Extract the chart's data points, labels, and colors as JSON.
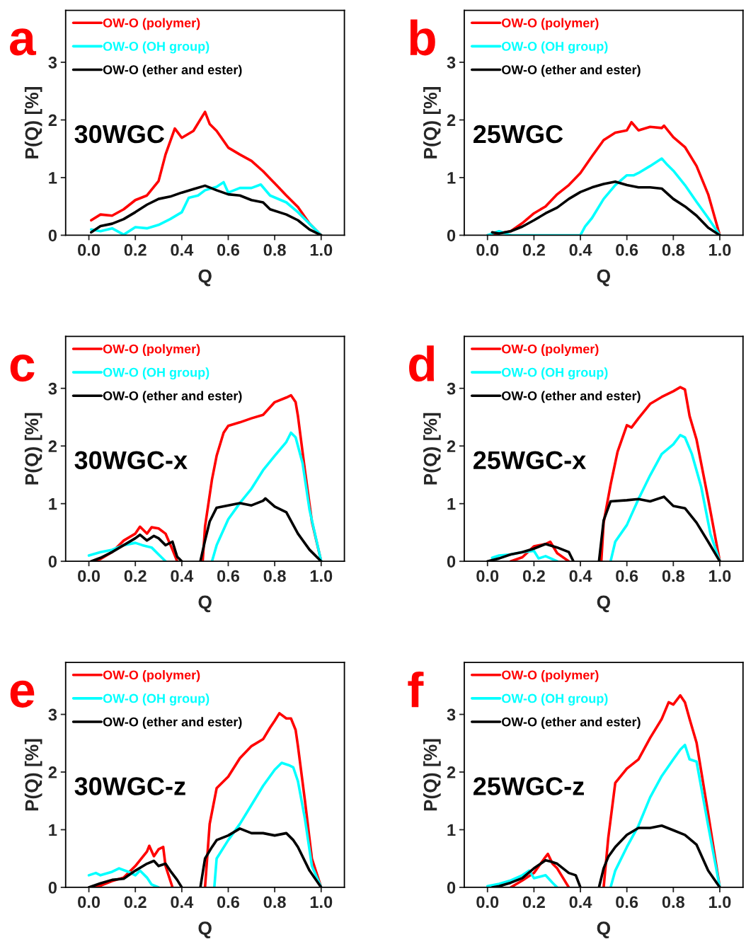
{
  "chart_data": [
    {
      "type": "line",
      "title": "a",
      "xlabel": "Q",
      "ylabel": "P(Q) [%]",
      "xlim": [
        -0.1,
        1.1
      ],
      "ylim": [
        0,
        3.9
      ],
      "xticks": [
        {
          "value": 0,
          "label": "0.0"
        },
        {
          "value": 0.2,
          "label": "0.2"
        },
        {
          "value": 0.4,
          "label": "0.4"
        },
        {
          "value": 0.6,
          "label": "0.6"
        },
        {
          "value": 0.8,
          "label": "0.8"
        },
        {
          "value": 1,
          "label": "1.0"
        }
      ],
      "yticks": [
        0,
        1,
        2,
        3
      ],
      "legend": "top left",
      "annotations": [
        "30WGC"
      ],
      "series": [
        {
          "name": "OW-O (polymer)",
          "color": "#ff0000",
          "x": [
            0.01,
            0.05,
            0.1,
            0.15,
            0.2,
            0.25,
            0.3,
            0.33,
            0.37,
            0.4,
            0.45,
            0.5,
            0.52,
            0.55,
            0.6,
            0.65,
            0.7,
            0.75,
            0.8,
            0.85,
            0.9,
            0.95,
            1.0
          ],
          "values": [
            0.26,
            0.36,
            0.34,
            0.45,
            0.61,
            0.69,
            0.94,
            1.4,
            1.85,
            1.69,
            1.81,
            2.14,
            1.93,
            1.81,
            1.52,
            1.4,
            1.29,
            1.11,
            0.9,
            0.69,
            0.49,
            0.2,
            0
          ]
        },
        {
          "name": "OW-O (OH group)",
          "color": "#00ffff",
          "x": [
            0.01,
            0.05,
            0.1,
            0.15,
            0.2,
            0.25,
            0.3,
            0.35,
            0.4,
            0.43,
            0.47,
            0.5,
            0.55,
            0.58,
            0.6,
            0.65,
            0.7,
            0.74,
            0.78,
            0.85,
            0.9,
            0.95,
            1.0
          ],
          "values": [
            0.1,
            0.07,
            0.12,
            0.01,
            0.14,
            0.12,
            0.18,
            0.28,
            0.4,
            0.65,
            0.69,
            0.78,
            0.84,
            0.92,
            0.74,
            0.82,
            0.82,
            0.88,
            0.69,
            0.57,
            0.4,
            0.2,
            0
          ]
        },
        {
          "name": "OW-O (ether and ester)",
          "color": "#000000",
          "x": [
            0.01,
            0.05,
            0.1,
            0.15,
            0.2,
            0.25,
            0.3,
            0.35,
            0.4,
            0.45,
            0.5,
            0.55,
            0.6,
            0.65,
            0.7,
            0.75,
            0.78,
            0.85,
            0.9,
            0.95,
            1.0
          ],
          "values": [
            0.05,
            0.16,
            0.2,
            0.28,
            0.4,
            0.53,
            0.63,
            0.67,
            0.74,
            0.8,
            0.86,
            0.78,
            0.71,
            0.69,
            0.61,
            0.57,
            0.45,
            0.36,
            0.26,
            0.1,
            0
          ]
        }
      ]
    },
    {
      "type": "line",
      "title": "b",
      "xlabel": "Q",
      "ylabel": "P(Q) [%]",
      "xlim": [
        -0.1,
        1.1
      ],
      "ylim": [
        0,
        3.9
      ],
      "xticks": [
        {
          "value": 0,
          "label": "0.0"
        },
        {
          "value": 0.2,
          "label": "0.2"
        },
        {
          "value": 0.4,
          "label": "0.4"
        },
        {
          "value": 0.6,
          "label": "0.6"
        },
        {
          "value": 0.8,
          "label": "0.8"
        },
        {
          "value": 1,
          "label": "1.0"
        }
      ],
      "yticks": [
        0,
        1,
        2,
        3
      ],
      "legend": "top left",
      "annotations": [
        "25WGC"
      ],
      "series": [
        {
          "name": "OW-O (polymer)",
          "color": "#ff0000",
          "x": [
            0.0,
            0.1,
            0.15,
            0.2,
            0.25,
            0.3,
            0.35,
            0.4,
            0.45,
            0.5,
            0.55,
            0.6,
            0.62,
            0.65,
            0.7,
            0.75,
            0.76,
            0.8,
            0.85,
            0.9,
            0.95,
            1.0
          ],
          "values": [
            0,
            0.07,
            0.21,
            0.38,
            0.5,
            0.71,
            0.87,
            1.08,
            1.37,
            1.65,
            1.78,
            1.82,
            1.96,
            1.82,
            1.88,
            1.86,
            1.9,
            1.7,
            1.53,
            1.2,
            0.71,
            0
          ]
        },
        {
          "name": "OW-O (OH group)",
          "color": "#00ffff",
          "x": [
            0.0,
            0.05,
            0.1,
            0.3,
            0.4,
            0.42,
            0.45,
            0.5,
            0.55,
            0.6,
            0.63,
            0.65,
            0.7,
            0.75,
            0.77,
            0.8,
            0.85,
            0.9,
            0.95,
            1.0
          ],
          "values": [
            0,
            0.07,
            0,
            0,
            0,
            0.15,
            0.3,
            0.63,
            0.87,
            1.04,
            1.04,
            1.08,
            1.2,
            1.33,
            1.24,
            1.12,
            0.87,
            0.58,
            0.3,
            0
          ]
        },
        {
          "name": "OW-O (ether and ester)",
          "color": "#000000",
          "x": [
            0.02,
            0.05,
            0.1,
            0.15,
            0.2,
            0.25,
            0.3,
            0.35,
            0.4,
            0.45,
            0.5,
            0.55,
            0.6,
            0.65,
            0.7,
            0.75,
            0.8,
            0.85,
            0.9,
            0.95,
            1.0
          ],
          "values": [
            0.05,
            0.03,
            0.07,
            0.15,
            0.26,
            0.38,
            0.48,
            0.63,
            0.75,
            0.83,
            0.89,
            0.93,
            0.87,
            0.83,
            0.83,
            0.81,
            0.63,
            0.5,
            0.34,
            0.13,
            0
          ]
        }
      ]
    },
    {
      "type": "line",
      "title": "c",
      "xlabel": "Q",
      "ylabel": "P(Q) [%]",
      "xlim": [
        -0.1,
        1.1
      ],
      "ylim": [
        0,
        3.9
      ],
      "xticks": [
        {
          "value": 0,
          "label": "0.0"
        },
        {
          "value": 0.2,
          "label": "0.2"
        },
        {
          "value": 0.4,
          "label": "0.4"
        },
        {
          "value": 0.6,
          "label": "0.6"
        },
        {
          "value": 0.8,
          "label": "0.8"
        },
        {
          "value": 1,
          "label": "1.0"
        }
      ],
      "yticks": [
        0,
        1,
        2,
        3
      ],
      "legend": "top left",
      "annotations": [
        "30WGC-x"
      ],
      "series": [
        {
          "name": "OW-O (polymer)",
          "color": "#ff0000",
          "x": [
            0.02,
            0.05,
            0.1,
            0.15,
            0.2,
            0.22,
            0.25,
            0.27,
            0.3,
            0.33,
            0.36,
            0.38,
            0.44,
            0.49,
            0.5,
            0.53,
            0.55,
            0.58,
            0.6,
            0.65,
            0.7,
            0.75,
            0.8,
            0.85,
            0.87,
            0.89,
            0.9,
            0.93,
            0.96,
            1.0
          ],
          "values": [
            0,
            0.04,
            0.16,
            0.36,
            0.48,
            0.6,
            0.48,
            0.59,
            0.57,
            0.48,
            0.2,
            0,
            null,
            0,
            0.6,
            1.42,
            1.83,
            2.23,
            2.35,
            2.41,
            2.48,
            2.54,
            2.76,
            2.84,
            2.88,
            2.76,
            2.52,
            1.58,
            0.69,
            0
          ]
        },
        {
          "name": "OW-O (OH group)",
          "color": "#00ffff",
          "x": [
            0.0,
            0.05,
            0.1,
            0.15,
            0.2,
            0.23,
            0.27,
            0.3,
            0.33,
            0.43,
            0.53,
            0.55,
            0.6,
            0.65,
            0.7,
            0.75,
            0.8,
            0.85,
            0.87,
            0.89,
            0.92,
            0.95,
            1.0
          ],
          "values": [
            0.1,
            0.16,
            0.2,
            0.28,
            0.32,
            0.28,
            0.24,
            0.12,
            0,
            null,
            0,
            0.28,
            0.73,
            1.01,
            1.26,
            1.58,
            1.83,
            2.07,
            2.23,
            2.15,
            1.7,
            0.89,
            0
          ]
        },
        {
          "name": "OW-O (ether and ester)",
          "color": "#000000",
          "x": [
            0.01,
            0.05,
            0.1,
            0.15,
            0.2,
            0.22,
            0.25,
            0.28,
            0.3,
            0.33,
            0.36,
            0.38,
            0.4,
            0.44,
            0.48,
            0.5,
            0.52,
            0.55,
            0.6,
            0.65,
            0.7,
            0.75,
            0.76,
            0.8,
            0.85,
            0.9,
            0.95,
            1.0
          ],
          "values": [
            0,
            0.06,
            0.16,
            0.28,
            0.4,
            0.46,
            0.36,
            0.44,
            0.4,
            0.28,
            0.34,
            0.08,
            0,
            null,
            0,
            0.36,
            0.69,
            0.93,
            0.97,
            1.01,
            0.97,
            1.05,
            1.09,
            0.95,
            0.85,
            0.48,
            0.2,
            0
          ]
        }
      ]
    },
    {
      "type": "line",
      "title": "d",
      "xlabel": "Q",
      "ylabel": "P(Q) [%]",
      "xlim": [
        -0.1,
        1.1
      ],
      "ylim": [
        0,
        3.9
      ],
      "xticks": [
        {
          "value": 0,
          "label": "0.0"
        },
        {
          "value": 0.2,
          "label": "0.2"
        },
        {
          "value": 0.4,
          "label": "0.4"
        },
        {
          "value": 0.6,
          "label": "0.6"
        },
        {
          "value": 0.8,
          "label": "0.8"
        },
        {
          "value": 1,
          "label": "1.0"
        }
      ],
      "yticks": [
        0,
        1,
        2,
        3
      ],
      "legend": "top left",
      "annotations": [
        "25WGC-x"
      ],
      "series": [
        {
          "name": "OW-O (polymer)",
          "color": "#ff0000",
          "x": [
            0.1,
            0.15,
            0.2,
            0.25,
            0.27,
            0.3,
            0.35,
            0.42,
            0.49,
            0.5,
            0.53,
            0.56,
            0.6,
            0.62,
            0.65,
            0.7,
            0.75,
            0.8,
            0.83,
            0.85,
            0.87,
            0.9,
            0.95,
            1.0
          ],
          "values": [
            0,
            0.07,
            0.26,
            0.3,
            0.34,
            0.14,
            0,
            null,
            0,
            0.67,
            1.33,
            1.9,
            2.36,
            2.32,
            2.48,
            2.73,
            2.85,
            2.95,
            3.02,
            2.98,
            2.52,
            2.11,
            1.08,
            0
          ]
        },
        {
          "name": "OW-O (OH group)",
          "color": "#00ffff",
          "x": [
            0.02,
            0.05,
            0.1,
            0.15,
            0.2,
            0.22,
            0.25,
            0.3,
            0.42,
            0.53,
            0.55,
            0.6,
            0.65,
            0.7,
            0.75,
            0.8,
            0.83,
            0.85,
            0.88,
            0.92,
            0.96,
            1.0
          ],
          "values": [
            0.06,
            0.1,
            0.12,
            0.16,
            0.18,
            0.05,
            0.09,
            0,
            null,
            0,
            0.34,
            0.63,
            1.08,
            1.49,
            1.86,
            2.03,
            2.19,
            2.15,
            1.86,
            1.29,
            0.47,
            0
          ]
        },
        {
          "name": "OW-O (ether and ester)",
          "color": "#000000",
          "x": [
            0.0,
            0.05,
            0.1,
            0.15,
            0.2,
            0.25,
            0.3,
            0.35,
            0.37,
            0.42,
            0.48,
            0.5,
            0.53,
            0.6,
            0.65,
            0.7,
            0.76,
            0.8,
            0.85,
            0.9,
            0.95,
            1.0
          ],
          "values": [
            0,
            0.05,
            0.12,
            0.16,
            0.22,
            0.3,
            0.24,
            0.16,
            0,
            null,
            0,
            0.71,
            1.04,
            1.06,
            1.08,
            1.04,
            1.12,
            0.96,
            0.92,
            0.67,
            0.34,
            0
          ]
        }
      ]
    },
    {
      "type": "line",
      "title": "e",
      "xlabel": "Q",
      "ylabel": "P(Q) [%]",
      "xlim": [
        -0.1,
        1.1
      ],
      "ylim": [
        0,
        3.9
      ],
      "xticks": [
        {
          "value": 0,
          "label": "0.0"
        },
        {
          "value": 0.2,
          "label": "0.2"
        },
        {
          "value": 0.4,
          "label": "0.4"
        },
        {
          "value": 0.6,
          "label": "0.6"
        },
        {
          "value": 0.8,
          "label": "0.8"
        },
        {
          "value": 1,
          "label": "1.0"
        }
      ],
      "yticks": [
        0,
        1,
        2,
        3
      ],
      "legend": "top left",
      "annotations": [
        "30WGC-z"
      ],
      "series": [
        {
          "name": "OW-O (polymer)",
          "color": "#ff0000",
          "x": [
            0.02,
            0.05,
            0.1,
            0.15,
            0.2,
            0.25,
            0.26,
            0.28,
            0.3,
            0.32,
            0.33,
            0.36,
            0.43,
            0.5,
            0.52,
            0.55,
            0.6,
            0.65,
            0.7,
            0.75,
            0.78,
            0.8,
            0.82,
            0.85,
            0.87,
            0.89,
            0.9,
            0.93,
            0.96,
            1.0
          ],
          "values": [
            0,
            0.03,
            0.11,
            0.17,
            0.37,
            0.62,
            0.72,
            0.54,
            0.66,
            0.7,
            0.37,
            0,
            null,
            0,
            1.1,
            1.72,
            1.92,
            2.24,
            2.45,
            2.57,
            2.77,
            2.89,
            3.02,
            2.93,
            2.93,
            2.73,
            2.45,
            1.51,
            0.5,
            0
          ]
        },
        {
          "name": "OW-O (OH group)",
          "color": "#00ffff",
          "x": [
            0.0,
            0.03,
            0.05,
            0.1,
            0.13,
            0.17,
            0.2,
            0.22,
            0.25,
            0.27,
            0.3,
            0.42,
            0.54,
            0.55,
            0.6,
            0.65,
            0.7,
            0.75,
            0.8,
            0.83,
            0.86,
            0.88,
            0.9,
            0.93,
            0.96,
            1.0
          ],
          "values": [
            0.21,
            0.25,
            0.21,
            0.27,
            0.33,
            0.27,
            0.21,
            0.29,
            0.17,
            0.05,
            0,
            null,
            0,
            0.5,
            0.82,
            1.1,
            1.43,
            1.76,
            2.04,
            2.16,
            2.12,
            2.08,
            1.84,
            1.19,
            0.37,
            0
          ]
        },
        {
          "name": "OW-O (ether and ester)",
          "color": "#000000",
          "x": [
            0.0,
            0.05,
            0.1,
            0.15,
            0.2,
            0.25,
            0.28,
            0.3,
            0.33,
            0.35,
            0.38,
            0.4,
            0.44,
            0.48,
            0.5,
            0.53,
            0.55,
            0.6,
            0.65,
            0.7,
            0.75,
            0.8,
            0.85,
            0.88,
            0.9,
            0.95,
            1.0
          ],
          "values": [
            0,
            0.07,
            0.13,
            0.15,
            0.29,
            0.41,
            0.46,
            0.37,
            0.41,
            0.29,
            0.13,
            0,
            null,
            0,
            0.5,
            0.7,
            0.82,
            0.9,
            1.02,
            0.94,
            0.94,
            0.9,
            0.94,
            0.82,
            0.7,
            0.29,
            0
          ]
        }
      ]
    },
    {
      "type": "line",
      "title": "f",
      "xlabel": "Q",
      "ylabel": "P(Q) [%]",
      "xlim": [
        -0.1,
        1.1
      ],
      "ylim": [
        0,
        3.9
      ],
      "xticks": [
        {
          "value": 0,
          "label": "0.0"
        },
        {
          "value": 0.2,
          "label": "0.2"
        },
        {
          "value": 0.4,
          "label": "0.4"
        },
        {
          "value": 0.6,
          "label": "0.6"
        },
        {
          "value": 0.8,
          "label": "0.8"
        },
        {
          "value": 1,
          "label": "1.0"
        }
      ],
      "yticks": [
        0,
        1,
        2,
        3
      ],
      "legend": "top left",
      "annotations": [
        "25WGC-z"
      ],
      "series": [
        {
          "name": "OW-O (polymer)",
          "color": "#ff0000",
          "x": [
            0.1,
            0.15,
            0.2,
            0.25,
            0.26,
            0.28,
            0.3,
            0.35,
            0.42,
            0.5,
            0.52,
            0.55,
            0.6,
            0.65,
            0.7,
            0.75,
            0.78,
            0.8,
            0.83,
            0.85,
            0.87,
            0.9,
            0.95,
            1.0
          ],
          "values": [
            0,
            0.12,
            0.25,
            0.53,
            0.58,
            0.41,
            0.33,
            0,
            null,
            0,
            0.86,
            1.81,
            2.06,
            2.22,
            2.59,
            2.92,
            3.21,
            3.17,
            3.33,
            3.21,
            2.92,
            2.51,
            1.28,
            0
          ]
        },
        {
          "name": "OW-O (OH group)",
          "color": "#00ffff",
          "x": [
            0.0,
            0.05,
            0.1,
            0.15,
            0.18,
            0.2,
            0.25,
            0.28,
            0.3,
            0.42,
            0.53,
            0.55,
            0.6,
            0.65,
            0.7,
            0.75,
            0.8,
            0.83,
            0.85,
            0.87,
            0.9,
            0.95,
            1.0
          ],
          "values": [
            0.02,
            0.06,
            0.12,
            0.21,
            0.29,
            0.16,
            0.21,
            0.08,
            0,
            null,
            0,
            0.29,
            0.7,
            1.07,
            1.56,
            1.93,
            2.22,
            2.39,
            2.47,
            2.22,
            2.18,
            1.07,
            0
          ]
        },
        {
          "name": "OW-O (ether and ester)",
          "color": "#000000",
          "x": [
            0.02,
            0.05,
            0.1,
            0.15,
            0.2,
            0.25,
            0.27,
            0.3,
            0.35,
            0.38,
            0.4,
            0.44,
            0.48,
            0.5,
            0.52,
            0.55,
            0.6,
            0.65,
            0.7,
            0.75,
            0.8,
            0.85,
            0.9,
            0.95,
            1.0
          ],
          "values": [
            0,
            0.02,
            0.08,
            0.16,
            0.33,
            0.47,
            0.45,
            0.41,
            0.25,
            0.21,
            0,
            null,
            0,
            0.33,
            0.53,
            0.7,
            0.91,
            1.03,
            1.03,
            1.07,
            0.99,
            0.91,
            0.74,
            0.29,
            0
          ]
        }
      ]
    }
  ]
}
